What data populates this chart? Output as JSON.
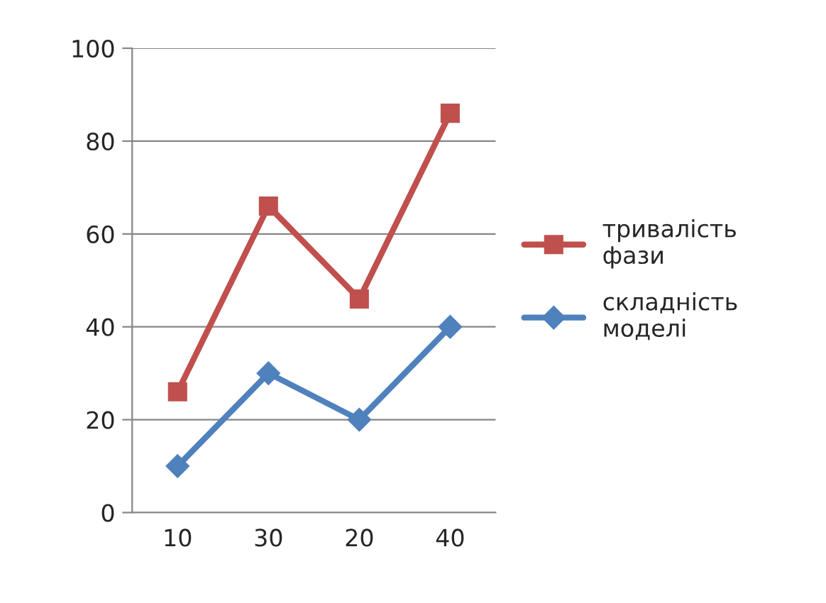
{
  "chart_data": {
    "type": "line",
    "categories": [
      "10",
      "30",
      "20",
      "40"
    ],
    "series": [
      {
        "name": "тривалість фази",
        "color": "#c0504d",
        "marker": "square",
        "values": [
          26,
          66,
          46,
          86
        ]
      },
      {
        "name": "складність моделі",
        "color": "#4f81bd",
        "marker": "diamond",
        "values": [
          10,
          30,
          20,
          40
        ]
      }
    ],
    "ylim": [
      0,
      100
    ],
    "yticks": [
      0,
      20,
      40,
      60,
      80,
      100
    ],
    "grid": "y",
    "legend": "right",
    "line_style": "solid"
  }
}
